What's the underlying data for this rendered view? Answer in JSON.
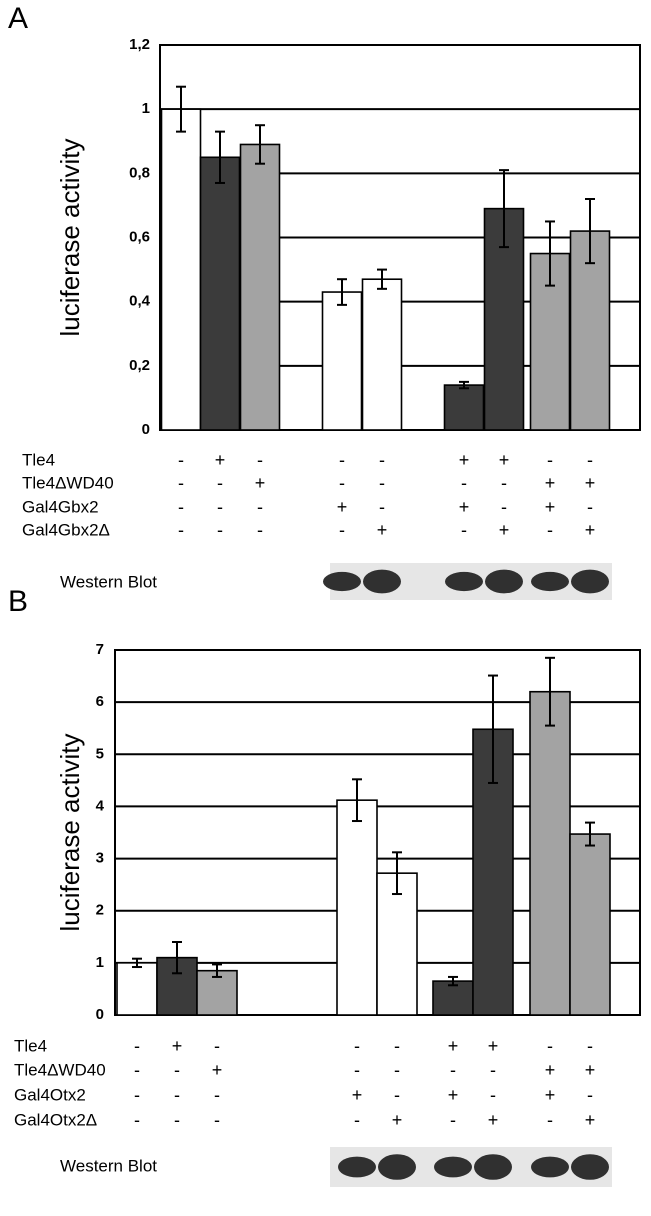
{
  "chart_data": [
    {
      "type": "bar",
      "panel": "A",
      "ylabel": "luciferase activity",
      "ylim": [
        0,
        1.2
      ],
      "yticks": [
        0,
        {
          "value": 0.2,
          "label": "0,2"
        },
        {
          "value": 0.4,
          "label": "0,4"
        },
        {
          "value": 0.6,
          "label": "0,6"
        },
        {
          "value": 0.8,
          "label": "0,8"
        },
        1,
        {
          "value": 1.2,
          "label": "1,2"
        }
      ],
      "grid": true,
      "values": [
        1.0,
        0.85,
        0.89,
        0.43,
        0.47,
        0.14,
        0.69,
        0.55,
        0.62
      ],
      "errors": [
        0.07,
        0.08,
        0.06,
        0.04,
        0.03,
        0.01,
        0.12,
        0.1,
        0.1
      ],
      "colors": [
        "#ffffff",
        "#3b3b3b",
        "#a3a3a3",
        "#ffffff",
        "#ffffff",
        "#3b3b3b",
        "#3b3b3b",
        "#a3a3a3",
        "#a3a3a3"
      ],
      "conditions": [
        {
          "label": "Tle4",
          "signs": [
            "-",
            "+",
            "-",
            "-",
            "-",
            "+",
            "+",
            "-",
            "-"
          ]
        },
        {
          "label": "Tle4ΔWD40",
          "signs": [
            "-",
            "-",
            "+",
            "-",
            "-",
            "-",
            "-",
            "+",
            "+"
          ]
        },
        {
          "label": "Gal4Gbx2",
          "signs": [
            "-",
            "-",
            "-",
            "+",
            "-",
            "+",
            "-",
            "+",
            "-"
          ]
        },
        {
          "label": "Gal4Gbx2Δ",
          "signs": [
            "-",
            "-",
            "-",
            "-",
            "+",
            "-",
            "+",
            "-",
            "+"
          ]
        }
      ],
      "blot_label": "Western Blot"
    },
    {
      "type": "bar",
      "panel": "B",
      "ylabel": "luciferase activity",
      "ylim": [
        0,
        7
      ],
      "yticks": [
        0,
        1,
        2,
        3,
        4,
        5,
        6,
        7
      ],
      "grid": true,
      "values": [
        1.0,
        1.1,
        0.85,
        4.12,
        2.72,
        0.65,
        5.48,
        6.2,
        3.47
      ],
      "errors": [
        0.08,
        0.3,
        0.12,
        0.4,
        0.4,
        0.08,
        1.03,
        0.65,
        0.22
      ],
      "colors": [
        "#ffffff",
        "#3b3b3b",
        "#a3a3a3",
        "#ffffff",
        "#ffffff",
        "#3b3b3b",
        "#3b3b3b",
        "#a3a3a3",
        "#a3a3a3"
      ],
      "conditions": [
        {
          "label": "Tle4",
          "signs": [
            "-",
            "+",
            "-",
            "-",
            "-",
            "+",
            "+",
            "-",
            "-"
          ]
        },
        {
          "label": "Tle4ΔWD40",
          "signs": [
            "-",
            "-",
            "+",
            "-",
            "-",
            "-",
            "-",
            "+",
            "+"
          ]
        },
        {
          "label": "Gal4Otx2",
          "signs": [
            "-",
            "-",
            "-",
            "+",
            "-",
            "+",
            "-",
            "+",
            "-"
          ]
        },
        {
          "label": "Gal4Otx2Δ",
          "signs": [
            "-",
            "-",
            "-",
            "-",
            "+",
            "-",
            "+",
            "-",
            "+"
          ]
        }
      ],
      "blot_label": "Western Blot"
    }
  ]
}
